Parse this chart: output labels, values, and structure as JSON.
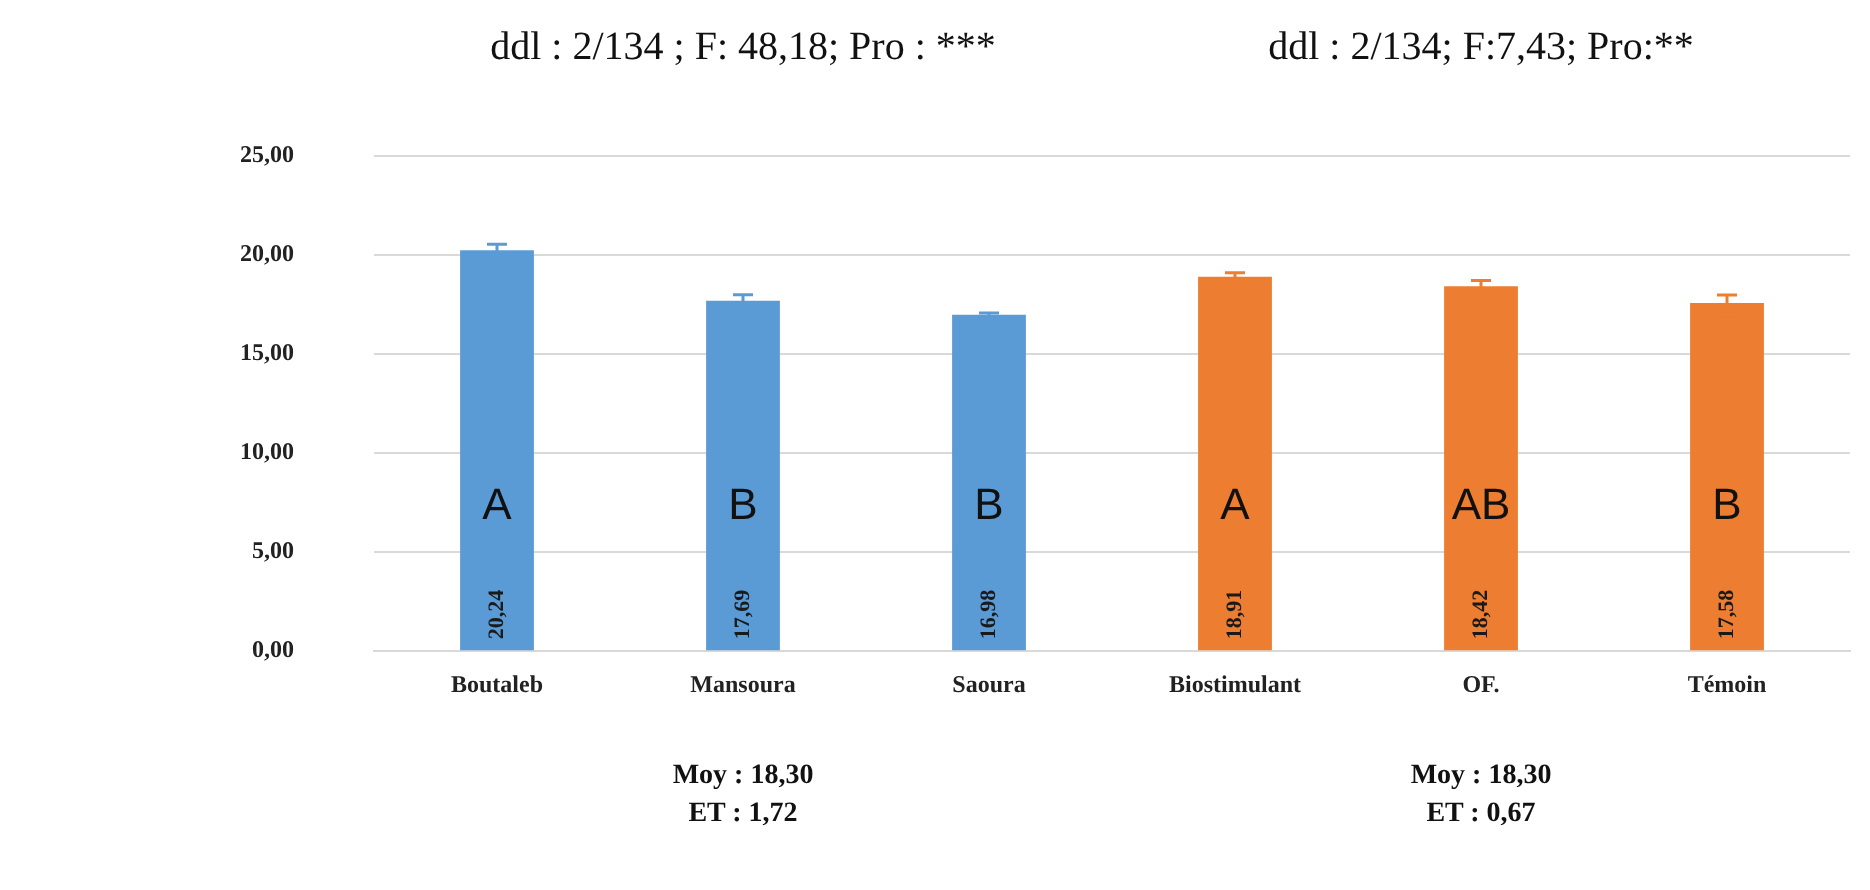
{
  "chart_data": {
    "type": "bar",
    "categories": [
      "Boutaleb",
      "Mansoura",
      "Saoura",
      "Biostimulant",
      "OF.",
      "Témoin"
    ],
    "values": [
      20.24,
      17.69,
      16.98,
      18.91,
      18.42,
      17.58
    ],
    "colors": [
      "#5b9bd5",
      "#5b9bd5",
      "#5b9bd5",
      "#ed7d31",
      "#ed7d31",
      "#ed7d31"
    ],
    "errors": [
      0.3,
      0.3,
      0.1,
      0.2,
      0.3,
      0.4
    ],
    "value_labels": [
      "20,24",
      "17,69",
      "16,98",
      "18,91",
      "18,42",
      "17,58"
    ],
    "ylim": [
      0,
      25
    ],
    "yticks": [
      {
        "value": 0,
        "label": "0,00"
      },
      {
        "value": 5,
        "label": "5,00"
      },
      {
        "value": 10,
        "label": "10,00"
      },
      {
        "value": 15,
        "label": "15,00"
      },
      {
        "value": 20,
        "label": "20,00"
      },
      {
        "value": 25,
        "label": "25,00"
      }
    ],
    "grid": "y",
    "legend": false,
    "annotations": [
      "ddl : 2/134 ; F: 48,18; Pro : ***",
      "ddl : 2/134; F:7,43; Pro:**",
      "Moy : 18,30\nET : 1,72",
      "Moy : 18,30\nET : 0,67",
      "A",
      "B",
      "B",
      "A",
      "AB",
      "B"
    ]
  }
}
